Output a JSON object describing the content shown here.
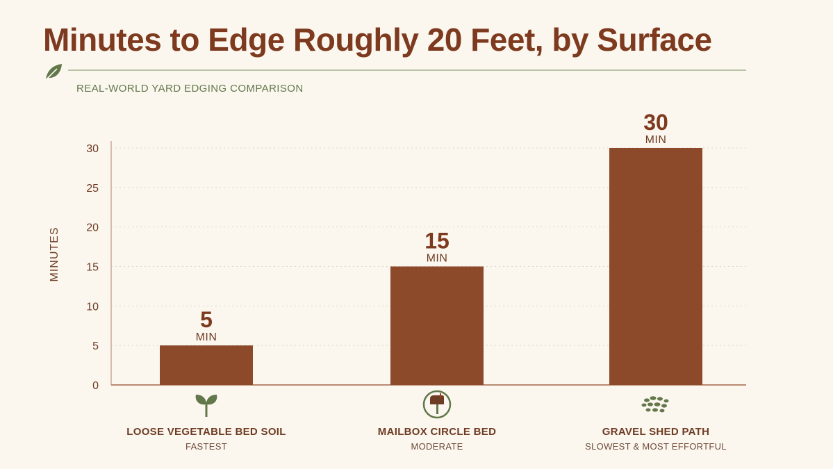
{
  "header": {
    "title": "Minutes to Edge Roughly 20 Feet, by Surface",
    "subtitle": "REAL-WORLD YARD EDGING COMPARISON",
    "icon": "leaf-icon"
  },
  "colors": {
    "bar": "#8c4a2b",
    "title": "#7d3a1f",
    "accent_green": "#62774a",
    "axis_text": "#6e3b23",
    "background": "#fbf7ef"
  },
  "chart_data": {
    "type": "bar",
    "title": "Minutes to Edge Roughly 20 Feet, by Surface",
    "subtitle": "REAL-WORLD YARD EDGING COMPARISON",
    "ylabel": "MINUTES",
    "xlabel": "",
    "ylim": [
      0,
      30
    ],
    "yticks": [
      0,
      5,
      10,
      15,
      20,
      25,
      30
    ],
    "grid": true,
    "categories": [
      "LOOSE VEGETABLE BED SOIL",
      "MAILBOX CIRCLE BED",
      "GRAVEL SHED PATH"
    ],
    "category_notes": [
      "FASTEST",
      "MODERATE",
      "SLOWEST & MOST EFFORTFUL"
    ],
    "category_icons": [
      "sprout-icon",
      "mailbox-icon",
      "gravel-icon"
    ],
    "values": [
      5,
      15,
      30
    ],
    "value_unit": "MIN"
  }
}
